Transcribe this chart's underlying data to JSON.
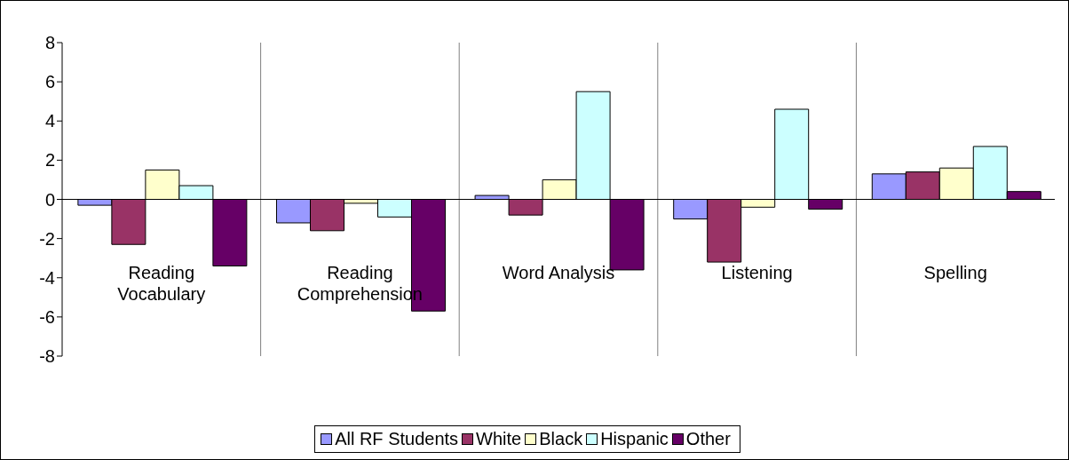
{
  "chart_data": {
    "type": "bar",
    "categories": [
      "Reading Vocabulary",
      "Reading Comprehension",
      "Word Analysis",
      "Listening",
      "Spelling"
    ],
    "series": [
      {
        "name": "All RF Students",
        "color": "#9999ff",
        "values": [
          -0.3,
          -1.2,
          0.2,
          -1.0,
          1.3
        ]
      },
      {
        "name": "White",
        "color": "#993366",
        "values": [
          -2.3,
          -1.6,
          -0.8,
          -3.2,
          1.4
        ]
      },
      {
        "name": "Black",
        "color": "#ffffcc",
        "values": [
          1.5,
          -0.2,
          1.0,
          -0.4,
          1.6
        ]
      },
      {
        "name": "Hispanic",
        "color": "#ccffff",
        "values": [
          0.7,
          -0.9,
          5.5,
          4.6,
          2.7
        ]
      },
      {
        "name": "Other",
        "color": "#660066",
        "values": [
          -3.4,
          -5.7,
          -3.6,
          -0.5,
          0.4
        ]
      }
    ],
    "ylim": [
      -8,
      8
    ],
    "yticks": [
      -8,
      -6,
      -4,
      -2,
      0,
      2,
      4,
      6,
      8
    ],
    "grid": "x",
    "legend": "bottom"
  }
}
